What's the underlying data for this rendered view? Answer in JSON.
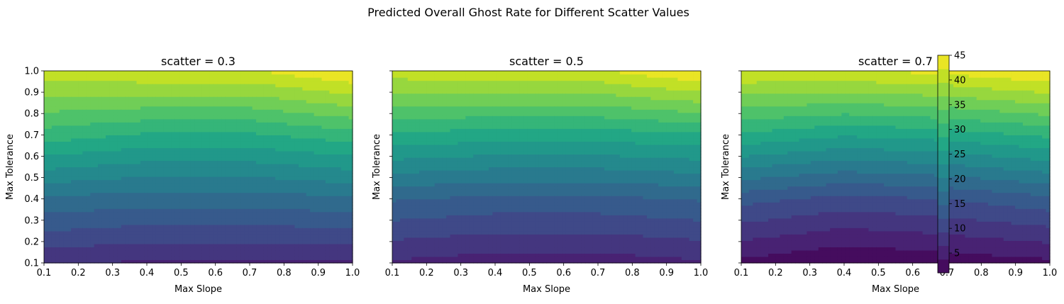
{
  "figure": {
    "title": "Predicted Overall Ghost Rate for Different Scatter Values"
  },
  "chart_data": {
    "type": "heatmap",
    "subtype": "filled-contour",
    "colormap": "viridis",
    "colormap_stops": [
      "#440154",
      "#482475",
      "#414487",
      "#355f8d",
      "#2a788e",
      "#21918c",
      "#22a884",
      "#44bf70",
      "#7ad151",
      "#bddf26",
      "#fde725"
    ],
    "panels": [
      {
        "title": "scatter = 0.3",
        "scatter": 0.3,
        "xlabel": "Max Slope",
        "ylabel": "Max Tolerance",
        "show_ytick_labels": true
      },
      {
        "title": "scatter = 0.5",
        "scatter": 0.5,
        "xlabel": "Max Slope",
        "ylabel": "Max Tolerance",
        "show_ytick_labels": false
      },
      {
        "title": "scatter = 0.7",
        "scatter": 0.7,
        "xlabel": "Max Slope",
        "ylabel": "Max Tolerance",
        "show_ytick_labels": false
      }
    ],
    "xlim": [
      0.1,
      1.0
    ],
    "ylim": [
      0.1,
      1.0
    ],
    "x_ticks": [
      "0.1",
      "0.2",
      "0.3",
      "0.4",
      "0.5",
      "0.6",
      "0.7",
      "0.8",
      "0.9",
      "1.0"
    ],
    "y_ticks": [
      "0.1",
      "0.2",
      "0.3",
      "0.4",
      "0.5",
      "0.6",
      "0.7",
      "0.8",
      "0.9",
      "1.0"
    ],
    "colorbar": {
      "range": [
        1,
        45
      ],
      "ticks": [
        "5",
        "10",
        "15",
        "20",
        "25",
        "30",
        "35",
        "40",
        "45"
      ],
      "location": "right of last panel"
    },
    "surface_samples": [
      {
        "scatter": 0.3,
        "x": [
          0.1,
          0.4,
          0.7,
          1.0
        ],
        "y": [
          0.1,
          0.4,
          0.7,
          1.0
        ],
        "z": [
          [
            7,
            6,
            6,
            6
          ],
          [
            17,
            16,
            16,
            17
          ],
          [
            30,
            28,
            28,
            30
          ],
          [
            41,
            42,
            42,
            45
          ]
        ]
      },
      {
        "scatter": 0.5,
        "x": [
          0.1,
          0.4,
          0.7,
          1.0
        ],
        "y": [
          0.1,
          0.4,
          0.7,
          1.0
        ],
        "z": [
          [
            6,
            5,
            5,
            6
          ],
          [
            15,
            14,
            14,
            15
          ],
          [
            28,
            27,
            27,
            28
          ],
          [
            41,
            42,
            42,
            45
          ]
        ]
      },
      {
        "scatter": 0.7,
        "x": [
          0.1,
          0.4,
          0.7,
          1.0
        ],
        "y": [
          0.1,
          0.4,
          0.7,
          1.0
        ],
        "z": [
          [
            3,
            1,
            2,
            3
          ],
          [
            13,
            11,
            12,
            14
          ],
          [
            28,
            26,
            27,
            29
          ],
          [
            42,
            42,
            43,
            45
          ]
        ]
      }
    ]
  }
}
